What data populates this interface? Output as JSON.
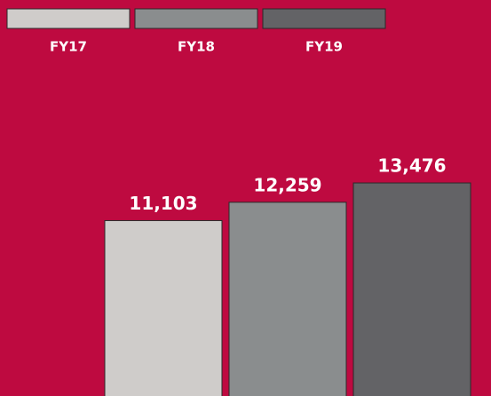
{
  "chart_data": {
    "type": "bar",
    "categories": [
      "FY17",
      "FY18",
      "FY19"
    ],
    "values": [
      11103,
      12259,
      13476
    ],
    "value_labels": [
      "11,103",
      "12,259",
      "13,476"
    ],
    "colors": [
      "#cfccca",
      "#8a8d8e",
      "#636366"
    ],
    "ylim": [
      0,
      25000
    ],
    "legend": "top"
  }
}
